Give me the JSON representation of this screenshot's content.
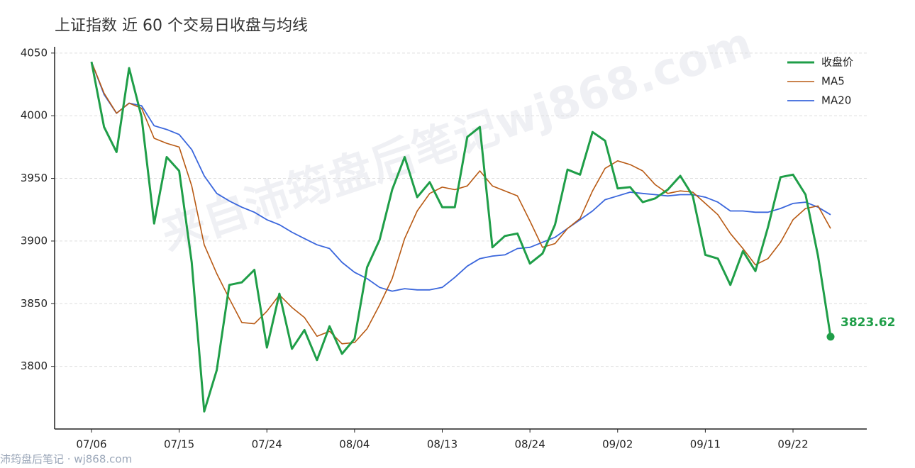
{
  "chart_data": {
    "type": "line",
    "title": "上证指数 近 60 个交易日收盘与均线",
    "watermark": "来自沛筠盘后笔记wj868.com",
    "source": "沛筠盘后笔记 · wj868.com",
    "categories": [
      "07/06",
      null,
      null,
      null,
      null,
      null,
      null,
      "07/15",
      null,
      null,
      null,
      null,
      null,
      null,
      "07/24",
      null,
      null,
      null,
      null,
      null,
      null,
      "08/04",
      null,
      null,
      null,
      null,
      null,
      null,
      "08/13",
      null,
      null,
      null,
      null,
      null,
      null,
      "08/24",
      null,
      null,
      null,
      null,
      null,
      null,
      "09/02",
      null,
      null,
      null,
      null,
      null,
      null,
      "09/11",
      null,
      null,
      null,
      null,
      null,
      null,
      "09/22",
      null,
      null,
      null
    ],
    "series": [
      {
        "name": "收盘价",
        "color": "#1f9e48",
        "values": [
          4043,
          3991,
          3971,
          4038,
          3999,
          3914,
          3967,
          3956,
          3883,
          3764,
          3797,
          3865,
          3867,
          3877,
          3815,
          3858,
          3814,
          3829,
          3805,
          3832,
          3810,
          3822,
          3879,
          3901,
          3941,
          3967,
          3935,
          3947,
          3927,
          3927,
          3983,
          3991,
          3895,
          3904,
          3906,
          3882,
          3890,
          3913,
          3957,
          3953,
          3987,
          3980,
          3942,
          3943,
          3931,
          3934,
          3941,
          3952,
          3936,
          3889,
          3886,
          3865,
          3892,
          3876,
          3911,
          3951,
          3953,
          3937,
          3888,
          3823.62
        ]
      },
      {
        "name": "MA5",
        "color": "#b85a14",
        "values": [
          4043,
          4018,
          4002,
          4010,
          4006,
          3982,
          3978,
          3975,
          3944,
          3897,
          3874,
          3854,
          3835,
          3834,
          3844,
          3857,
          3847,
          3839,
          3824,
          3828,
          3818,
          3819,
          3830,
          3849,
          3870,
          3902,
          3924,
          3938,
          3943,
          3941,
          3944,
          3956,
          3944,
          3940,
          3936,
          3916,
          3895,
          3898,
          3910,
          3918,
          3940,
          3958,
          3964,
          3961,
          3956,
          3945,
          3938,
          3940,
          3939,
          3930,
          3921,
          3906,
          3894,
          3881,
          3886,
          3899,
          3917,
          3926,
          3928,
          3910
        ]
      },
      {
        "name": "MA20",
        "color": "#3a66dc",
        "values": [
          4043,
          4017,
          4002,
          4010,
          4008,
          3992,
          3989,
          3985,
          3973,
          3952,
          3938,
          3932,
          3927,
          3923,
          3917,
          3913,
          3907,
          3902,
          3897,
          3894,
          3883,
          3875,
          3870,
          3863,
          3860,
          3862,
          3861,
          3861,
          3863,
          3871,
          3880,
          3886,
          3888,
          3889,
          3894,
          3895,
          3899,
          3903,
          3910,
          3917,
          3924,
          3933,
          3936,
          3939,
          3938,
          3937,
          3936,
          3937,
          3937,
          3935,
          3931,
          3924,
          3924,
          3923,
          3923,
          3926,
          3930,
          3931,
          3927,
          3921
        ]
      }
    ],
    "ylim": [
      3750,
      4055
    ],
    "yticks": [
      3800,
      3850,
      3900,
      3950,
      4000,
      4050
    ],
    "grid": true,
    "legend": "upper right"
  }
}
